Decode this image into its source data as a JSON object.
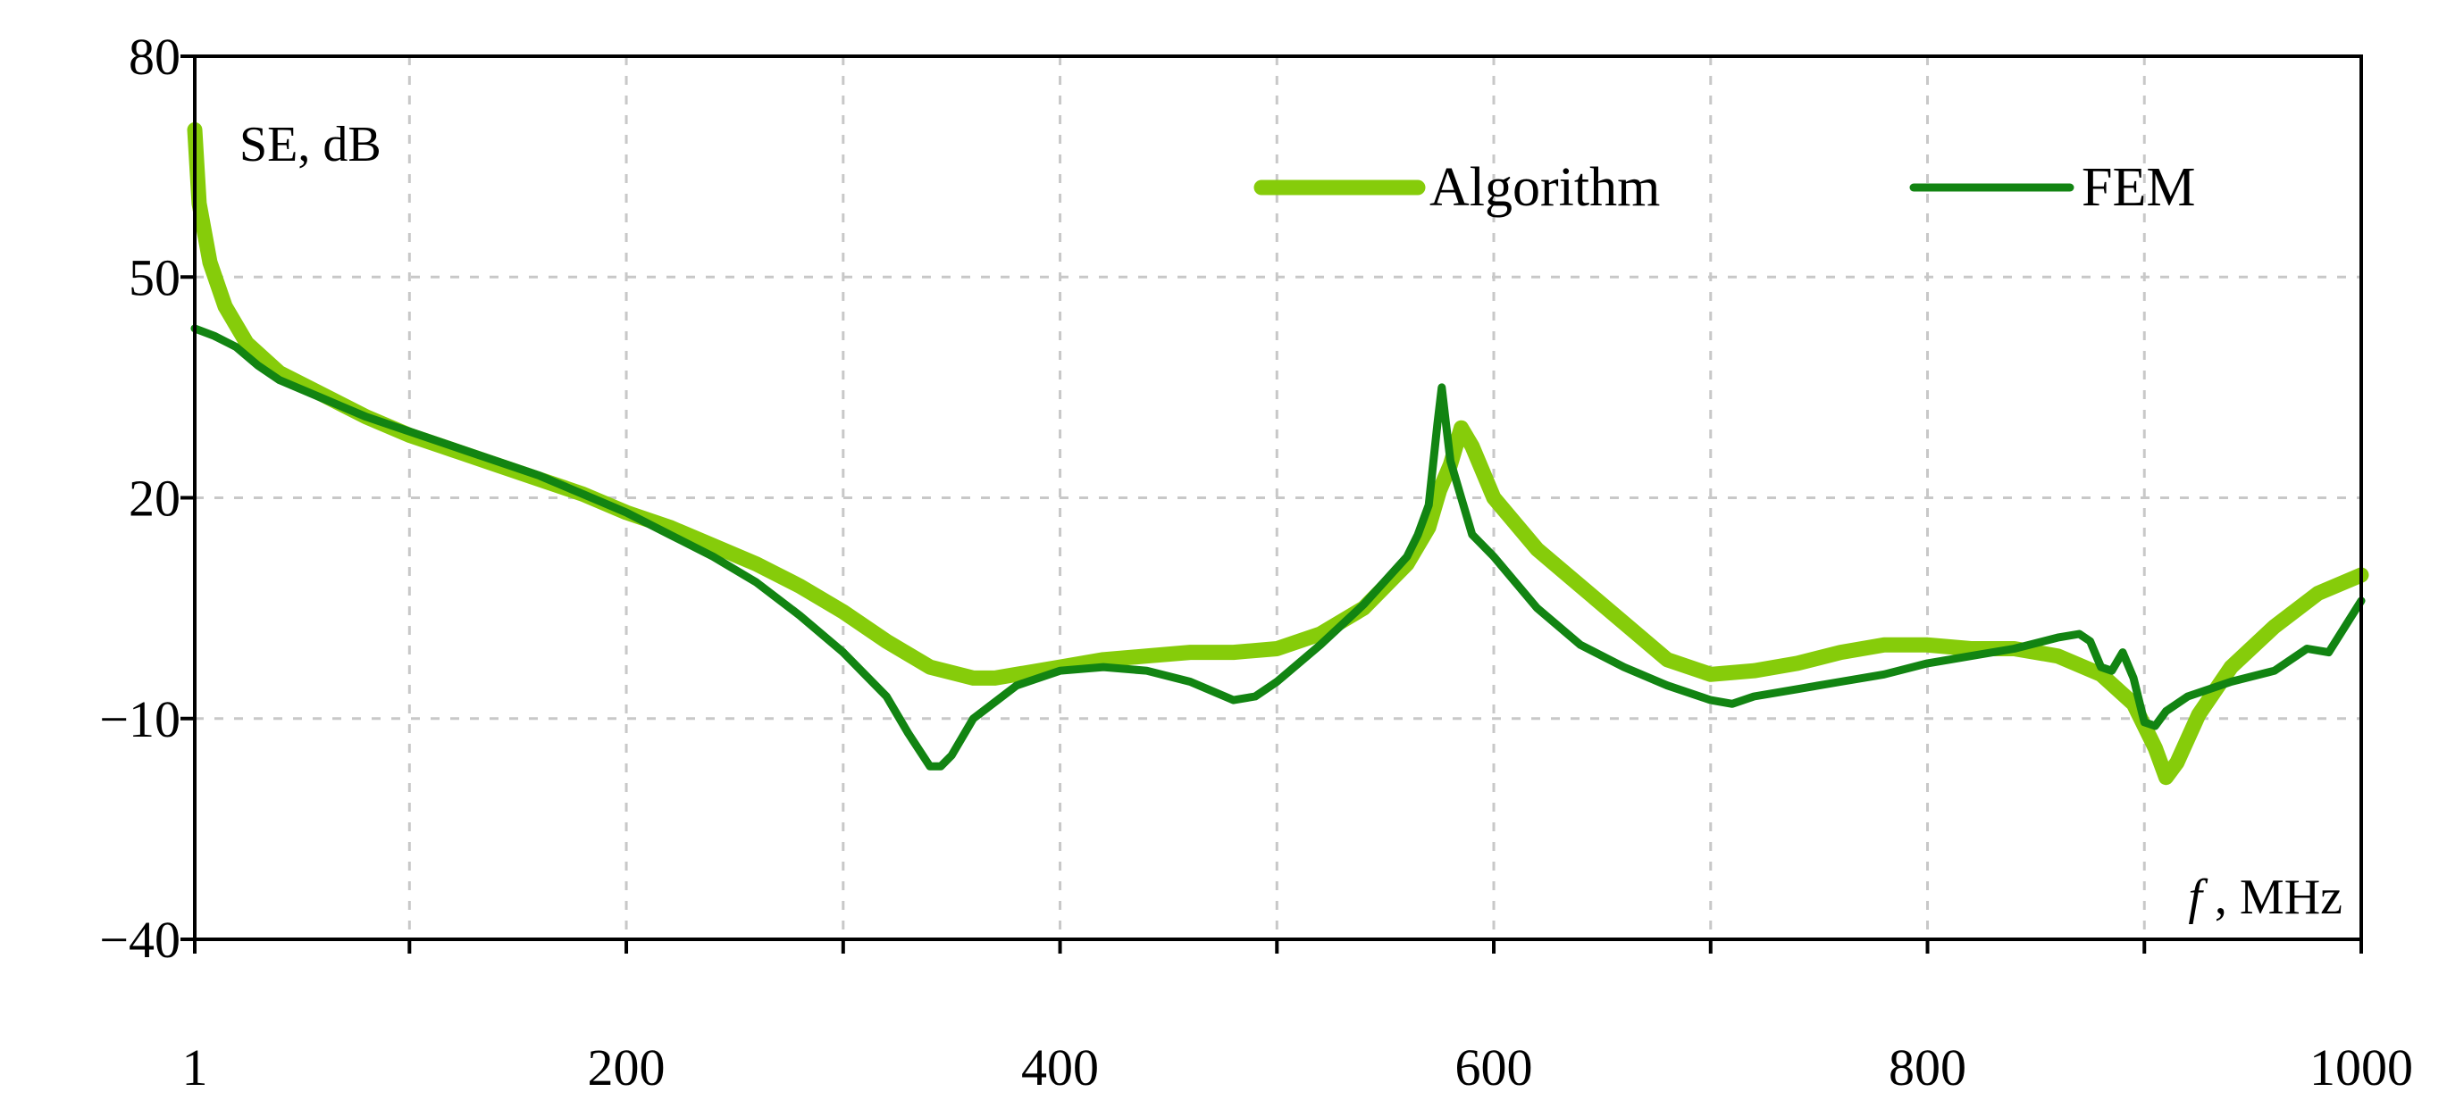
{
  "chart_data": {
    "type": "line",
    "title": "",
    "xlabel": "f , MHz",
    "ylabel": "SE, dB",
    "xlim": [
      1,
      1000
    ],
    "ylim": [
      -40,
      80
    ],
    "x_ticks": [
      1,
      200,
      400,
      600,
      800,
      1000
    ],
    "x_tick_labels": [
      "1",
      "200",
      "400",
      "600",
      "800",
      "1000"
    ],
    "x_minor_ticks": [
      100,
      300,
      500,
      700,
      900
    ],
    "y_ticks": [
      80,
      50,
      20,
      -10,
      -40
    ],
    "y_tick_labels": [
      "80",
      "50",
      "20",
      "−10",
      "−40"
    ],
    "grid": true,
    "legend_position": "top-right",
    "series": [
      {
        "name": "Algorithm",
        "color": "#86cc0a",
        "x": [
          1,
          3,
          8,
          15,
          25,
          40,
          60,
          80,
          100,
          120,
          140,
          160,
          180,
          200,
          220,
          240,
          260,
          280,
          300,
          320,
          340,
          360,
          370,
          380,
          400,
          420,
          440,
          460,
          480,
          500,
          520,
          540,
          560,
          570,
          575,
          580,
          585,
          590,
          600,
          620,
          640,
          660,
          680,
          700,
          720,
          740,
          760,
          780,
          800,
          820,
          840,
          860,
          880,
          895,
          905,
          910,
          915,
          925,
          940,
          960,
          980,
          1000
        ],
        "values": [
          70,
          60,
          52,
          46,
          41,
          37,
          34,
          31,
          28.5,
          26.5,
          24.5,
          22.5,
          20.5,
          18,
          16,
          13.5,
          11,
          8,
          4.5,
          0.5,
          -3,
          -4.5,
          -4.5,
          -4,
          -3,
          -2,
          -1.5,
          -1,
          -1,
          -0.5,
          1.5,
          5,
          11,
          16,
          21,
          24.5,
          29.5,
          27,
          20,
          13,
          8,
          3,
          -2,
          -4,
          -3.5,
          -2.5,
          -1,
          0,
          0,
          -0.5,
          -0.5,
          -1.5,
          -4,
          -8,
          -14,
          -18,
          -16,
          -9.5,
          -3,
          2.5,
          7,
          9.5
        ]
      },
      {
        "name": "FEM",
        "color": "#128412",
        "x": [
          1,
          10,
          20,
          30,
          40,
          60,
          80,
          100,
          120,
          140,
          160,
          180,
          200,
          220,
          240,
          260,
          280,
          300,
          320,
          330,
          340,
          345,
          350,
          360,
          380,
          400,
          420,
          440,
          460,
          480,
          490,
          500,
          520,
          540,
          560,
          565,
          570,
          574,
          576,
          578,
          580,
          585,
          590,
          600,
          620,
          640,
          660,
          680,
          700,
          710,
          720,
          740,
          760,
          780,
          800,
          820,
          840,
          860,
          870,
          875,
          880,
          885,
          890,
          895,
          900,
          905,
          910,
          920,
          940,
          960,
          975,
          985,
          1000
        ],
        "values": [
          43,
          42,
          40.5,
          38,
          36,
          33.5,
          31,
          29,
          27,
          25,
          23,
          20.5,
          18,
          15,
          12,
          8.5,
          4,
          -1,
          -7,
          -12,
          -16.5,
          -16.5,
          -15,
          -10,
          -5.5,
          -3.5,
          -3,
          -3.5,
          -5,
          -7.5,
          -7,
          -5,
          0,
          5.5,
          12,
          15,
          19,
          30,
          35,
          30,
          25,
          20,
          15,
          12,
          5,
          0,
          -3,
          -5.5,
          -7.5,
          -8,
          -7,
          -6,
          -5,
          -4,
          -2.5,
          -1.5,
          -0.5,
          1,
          1.5,
          0.5,
          -3,
          -3.5,
          -1,
          -4.5,
          -10.5,
          -11,
          -9,
          -7,
          -5,
          -3.5,
          -0.5,
          -1,
          6
        ]
      }
    ]
  }
}
